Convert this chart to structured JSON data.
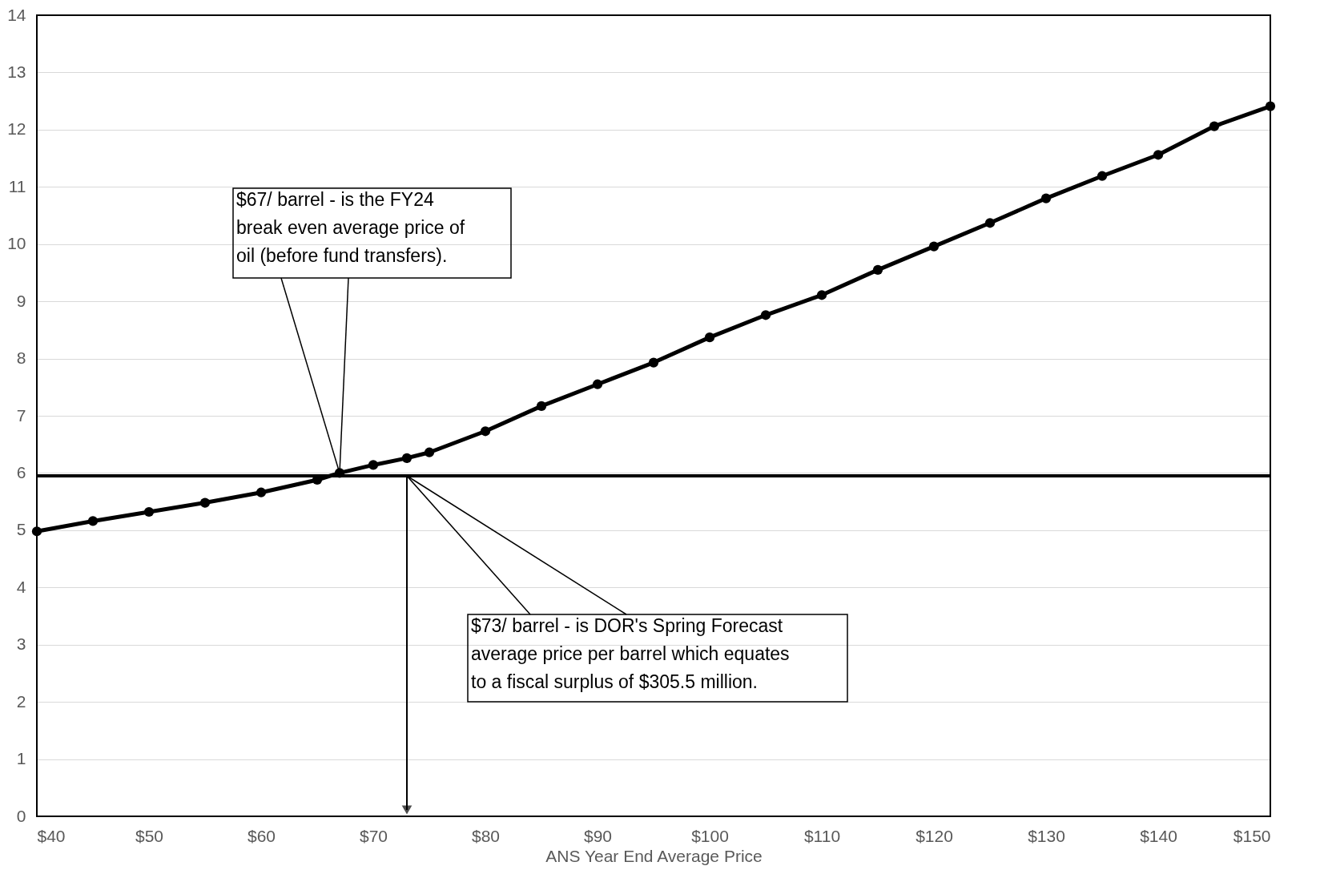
{
  "chart_data": {
    "type": "line",
    "xlabel": "ANS Year End Average Price",
    "x": [
      40,
      45,
      50,
      55,
      60,
      65,
      67,
      70,
      73,
      75,
      80,
      85,
      90,
      95,
      100,
      105,
      110,
      115,
      120,
      125,
      130,
      135,
      140,
      145,
      150
    ],
    "series": [
      {
        "color": "#000000",
        "values": [
          4.98,
          5.16,
          5.32,
          5.48,
          5.66,
          5.88,
          6.0,
          6.14,
          6.26,
          6.36,
          6.73,
          7.17,
          7.55,
          7.93,
          8.37,
          8.76,
          9.11,
          9.55,
          9.96,
          10.37,
          10.8,
          11.19,
          11.56,
          12.06,
          12.41
        ]
      }
    ],
    "xlim": [
      40,
      150
    ],
    "ylim": [
      0,
      14
    ],
    "xticks": [
      {
        "value": 40,
        "label": "$40"
      },
      {
        "value": 50,
        "label": "$50"
      },
      {
        "value": 60,
        "label": "$60"
      },
      {
        "value": 70,
        "label": "$70"
      },
      {
        "value": 80,
        "label": "$80"
      },
      {
        "value": 90,
        "label": "$90"
      },
      {
        "value": 100,
        "label": "$100"
      },
      {
        "value": 110,
        "label": "$110"
      },
      {
        "value": 120,
        "label": "$120"
      },
      {
        "value": 130,
        "label": "$130"
      },
      {
        "value": 140,
        "label": "$140"
      },
      {
        "value": 150,
        "label": "$150"
      }
    ],
    "yticks": [
      0,
      1,
      2,
      3,
      4,
      5,
      6,
      7,
      8,
      9,
      10,
      11,
      12,
      13,
      14
    ],
    "grid": "y",
    "marker": "circle",
    "line_style": "solid",
    "ref_lines": [
      {
        "axis": "y",
        "value": 5.95,
        "color": "#000000"
      }
    ],
    "annotations": [
      {
        "text": "$67/ barrel - is the FY24 break even average price of oil (before fund transfers).",
        "x": 67,
        "y": 6.0
      },
      {
        "text": "$73/ barrel - is DOR's Spring Forecast average price per barrel which equates to a fiscal surplus of $305.5 million.",
        "x": 73,
        "y": 5.95
      }
    ]
  }
}
